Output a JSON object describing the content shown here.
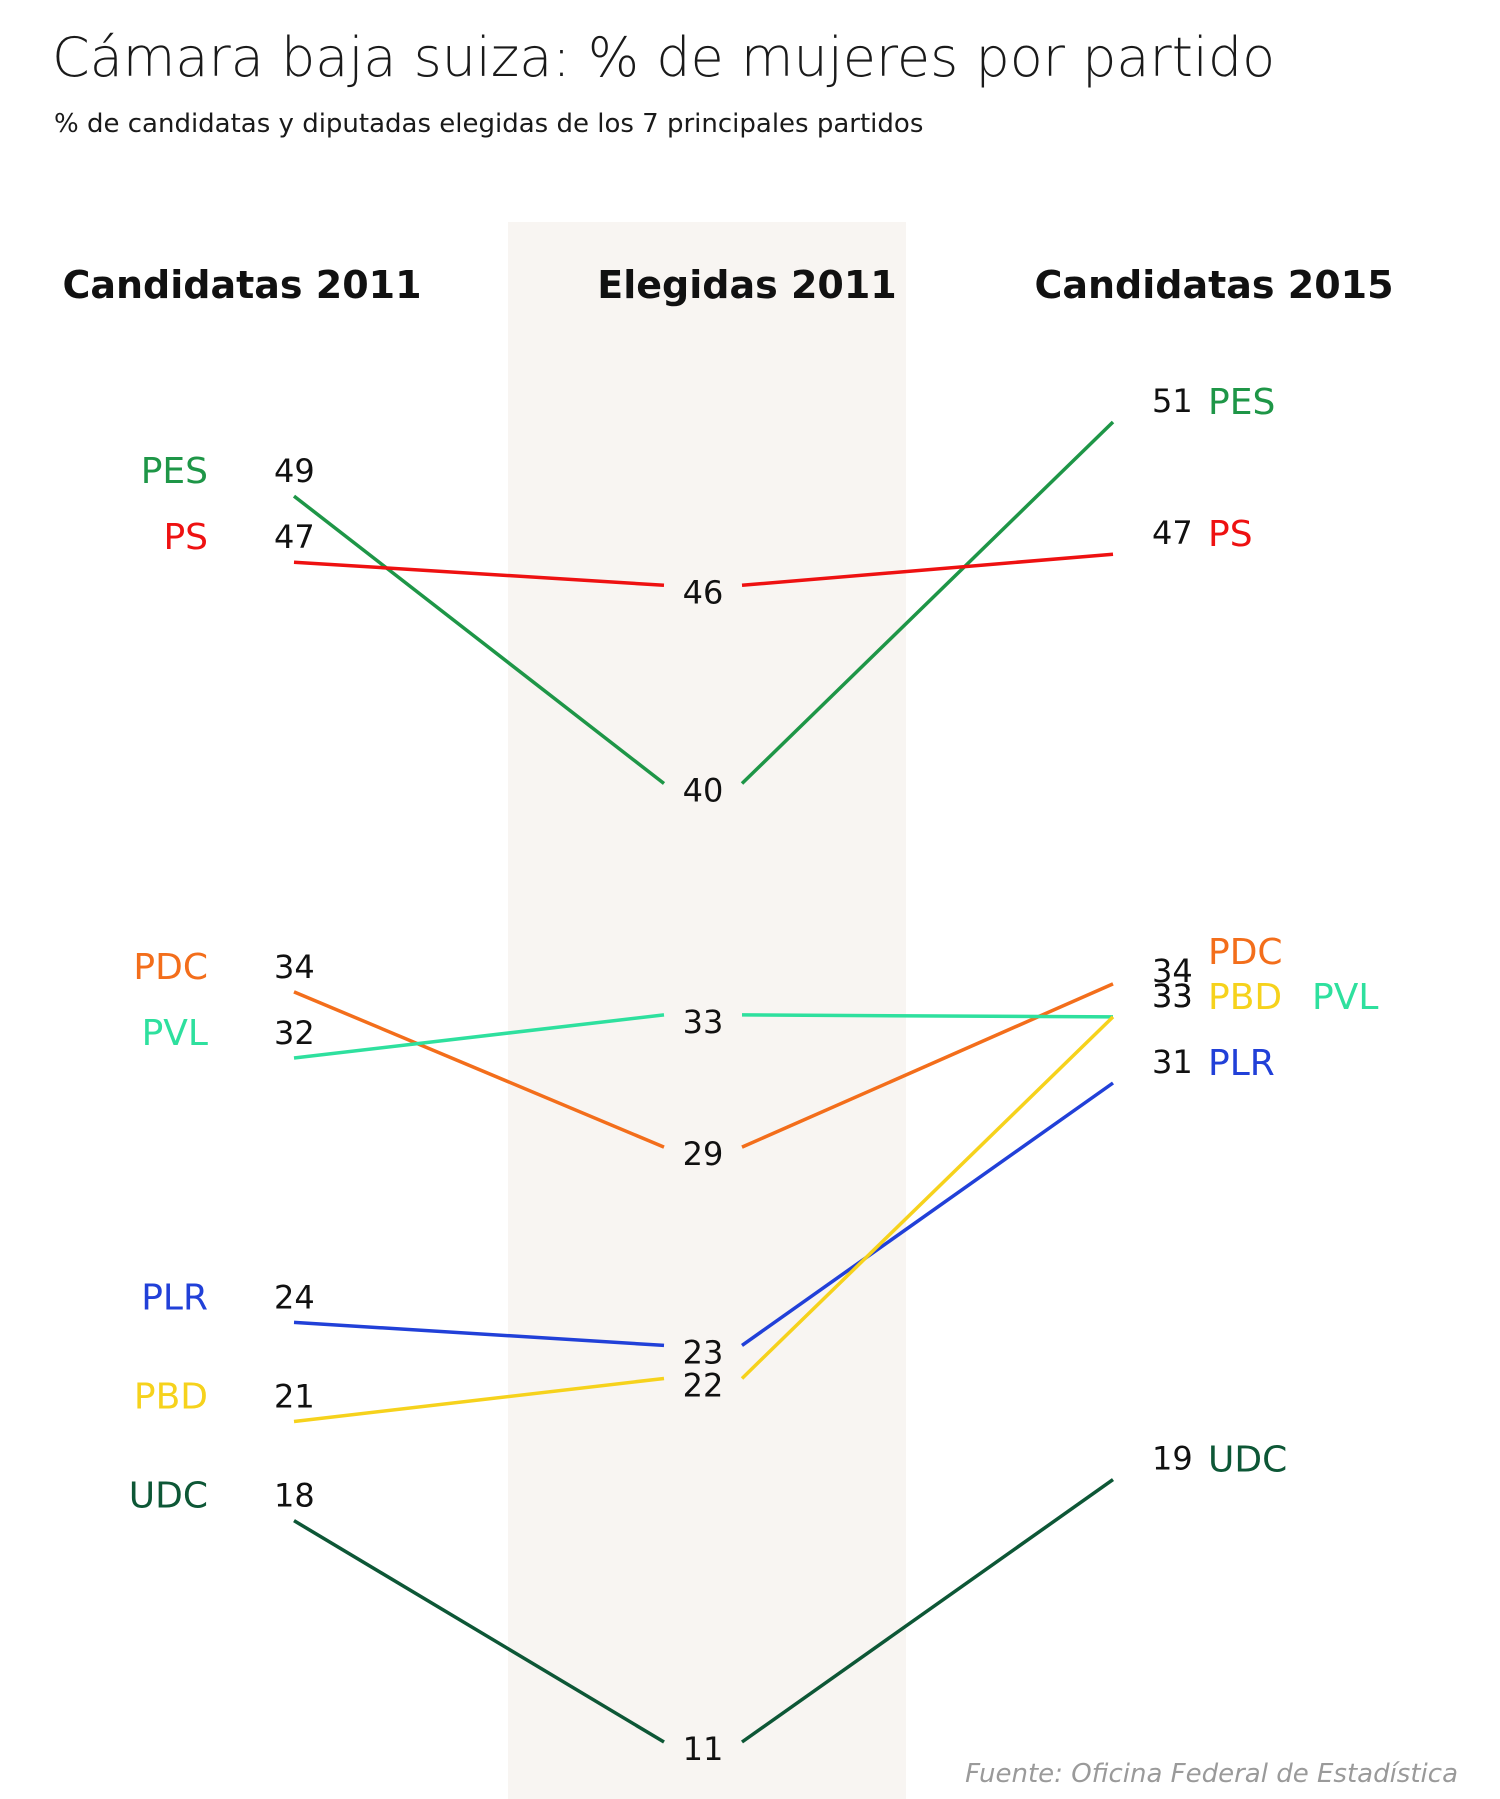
{
  "chart_data": {
    "type": "slope",
    "title": "Cámara baja suiza: % de mujeres por partido",
    "subtitle": "% de candidatas y diputadas elegidas de los 7 principales partidos",
    "columns": [
      "Candidatas 2011",
      "Elegidas 2011",
      "Candidatas 2015"
    ],
    "source": "Fuente: Oficina Federal de Estadística",
    "highlight_column": 1,
    "highlight_color": "#f8f5f2",
    "ylim": [
      11,
      51
    ],
    "series": [
      {
        "name": "PES",
        "color": "#1e9647",
        "values": [
          49,
          40,
          51
        ]
      },
      {
        "name": "PS",
        "color": "#ee1111",
        "values": [
          47,
          46,
          47
        ]
      },
      {
        "name": "PDC",
        "color": "#f36e1b",
        "values": [
          34,
          29,
          34
        ]
      },
      {
        "name": "PVL",
        "color": "#2ee09e",
        "values": [
          32,
          33,
          33
        ]
      },
      {
        "name": "PLR",
        "color": "#2140d8",
        "values": [
          24,
          23,
          31
        ]
      },
      {
        "name": "PBD",
        "color": "#f6d21c",
        "values": [
          21,
          22,
          33
        ]
      },
      {
        "name": "UDC",
        "color": "#0d5736",
        "values": [
          18,
          11,
          19
        ]
      }
    ]
  }
}
